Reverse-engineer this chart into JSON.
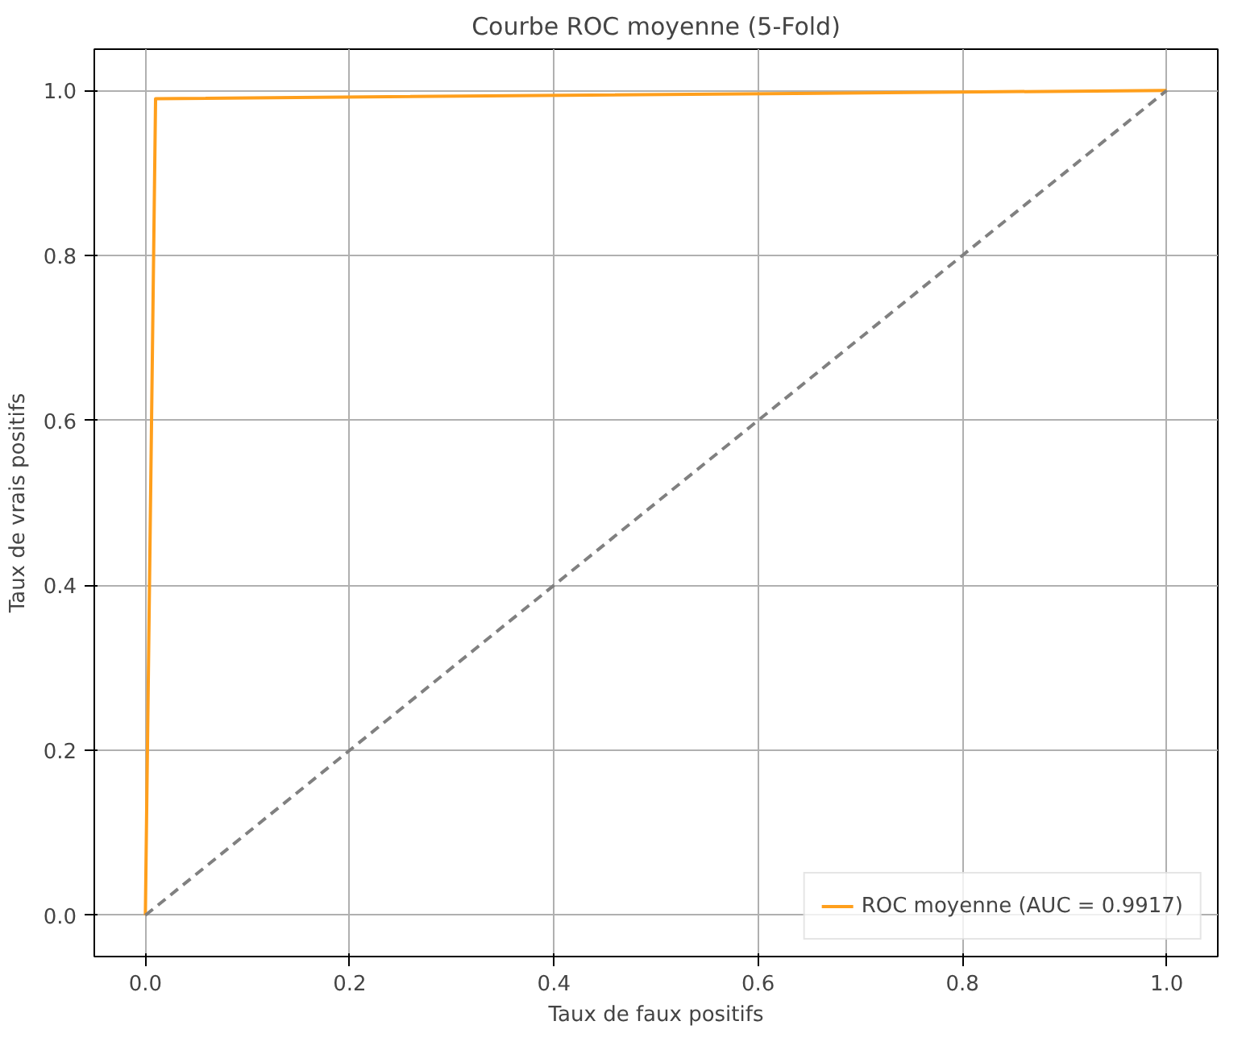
{
  "chart_data": {
    "type": "line",
    "title": "Courbe ROC moyenne (5-Fold)",
    "xlabel": "Taux de faux positifs",
    "ylabel": "Taux de vrais positifs",
    "series": [
      {
        "name": "ROC moyenne (AUC = 0.9917)",
        "color": "#ff9f1c",
        "x": [
          0,
          0.01,
          1
        ],
        "values": [
          0,
          0.99,
          1
        ]
      },
      {
        "color": "#808080",
        "x": [
          0,
          1
        ],
        "values": [
          0,
          1
        ],
        "line_style": "dashed"
      }
    ],
    "xlim": [
      -0.05,
      1.05
    ],
    "ylim": [
      -0.05,
      1.05
    ],
    "xticks": [
      {
        "value": 0,
        "label": "0.0"
      },
      0.2,
      0.4,
      0.6,
      0.8,
      {
        "value": 1,
        "label": "1.0"
      }
    ],
    "yticks": [
      {
        "value": 0,
        "label": "0.0"
      },
      0.2,
      0.4,
      0.6,
      0.8,
      {
        "value": 1,
        "label": "1.0"
      }
    ],
    "grid": true,
    "legend": "bottom right"
  }
}
